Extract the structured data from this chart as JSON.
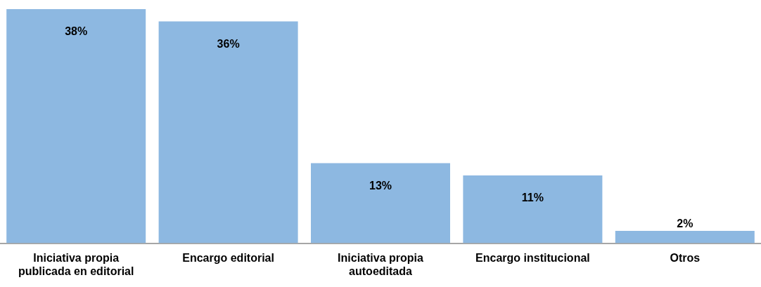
{
  "chart_data": {
    "type": "bar",
    "categories": [
      "Iniciativa propia publicada en editorial",
      "Encargo editorial",
      "Iniciativa propia autoeditada",
      "Encargo institucional",
      "Otros"
    ],
    "values": [
      38,
      36,
      13,
      11,
      2
    ],
    "value_labels": [
      "38%",
      "36%",
      "13%",
      "11%",
      "2%"
    ],
    "color": "#8db8e1",
    "grid": false,
    "legend": false
  }
}
